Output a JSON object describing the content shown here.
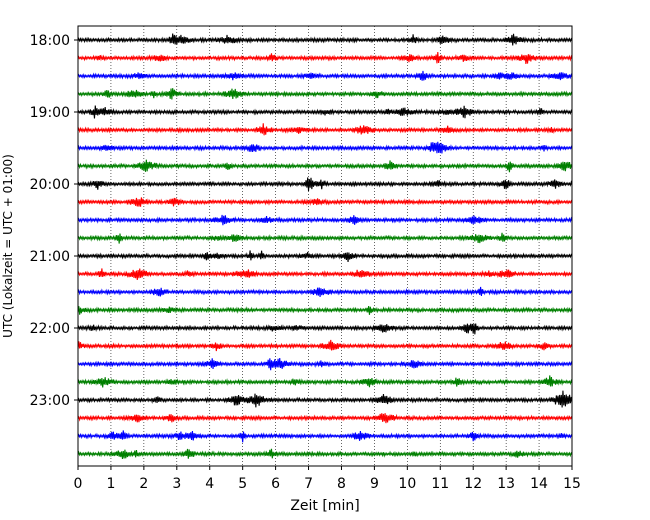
{
  "chart_data": {
    "type": "line",
    "title": "",
    "xlabel": "Zeit  [min]",
    "ylabel": "UTC (Lokalzeit = UTC + 01:00)",
    "xlim": [
      0,
      15
    ],
    "x_ticks": [
      0,
      1,
      2,
      3,
      4,
      5,
      6,
      7,
      8,
      9,
      10,
      11,
      12,
      13,
      14,
      15
    ],
    "y_tick_labels": [
      "18:00",
      "19:00",
      "20:00",
      "21:00",
      "22:00",
      "23:00"
    ],
    "trace_interval_min": 15,
    "trace_start": "18:00",
    "trace_end": "23:45",
    "trace_count": 24,
    "trace_colors": [
      "#000000",
      "#ff0000",
      "#0000ff",
      "#008000"
    ],
    "grid_x": true,
    "grid_style": "dotted",
    "legend": "none"
  }
}
